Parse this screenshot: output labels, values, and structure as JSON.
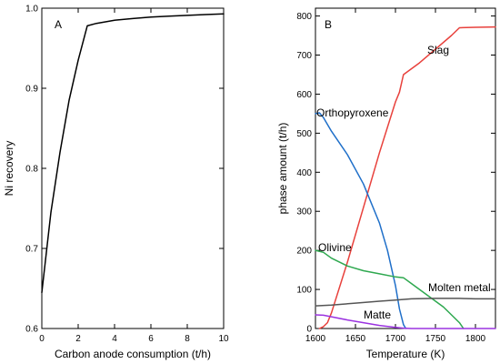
{
  "chart_data": [
    {
      "panel": "A",
      "type": "line",
      "xlabel": "Carbon anode consumption (t/h)",
      "ylabel": "Ni recovery",
      "xlim": [
        0,
        10
      ],
      "ylim": [
        0.6,
        1.0
      ],
      "xticks": [
        0,
        2,
        4,
        6,
        8,
        10
      ],
      "yticks": [
        0.6,
        0.7,
        0.8,
        0.9,
        1.0
      ],
      "ytick_labels": [
        "0.6",
        "0.7",
        "0.8",
        "0.9",
        "1.0"
      ],
      "grid": false,
      "series": [
        {
          "color": "#000000",
          "x": [
            0,
            0.5,
            1.0,
            1.5,
            2.0,
            2.5,
            3,
            4,
            5,
            6,
            7,
            8,
            9,
            10
          ],
          "y": [
            0.645,
            0.745,
            0.82,
            0.885,
            0.935,
            0.978,
            0.981,
            0.985,
            0.987,
            0.989,
            0.99,
            0.991,
            0.992,
            0.993
          ]
        }
      ]
    },
    {
      "panel": "B",
      "type": "line",
      "xlabel": "Temperature (K)",
      "ylabel": "phase amount (t/h)",
      "xlim": [
        1600,
        1825
      ],
      "ylim": [
        0,
        820
      ],
      "xticks": [
        1600,
        1650,
        1700,
        1750,
        1800
      ],
      "yticks": [
        0,
        100,
        200,
        300,
        400,
        500,
        600,
        700,
        800
      ],
      "grid": false,
      "series": [
        {
          "name": "Slag",
          "color": "#e8413c",
          "x": [
            1605,
            1610,
            1615,
            1620,
            1640,
            1660,
            1680,
            1700,
            1705,
            1710,
            1730,
            1750,
            1770,
            1780,
            1800,
            1825
          ],
          "y": [
            0,
            5,
            15,
            40,
            170,
            310,
            450,
            580,
            605,
            650,
            680,
            715,
            750,
            770,
            771,
            772
          ]
        },
        {
          "name": "Orthopyroxene",
          "color": "#1f6fc9",
          "x": [
            1600,
            1605,
            1610,
            1620,
            1640,
            1660,
            1680,
            1690,
            1700,
            1705,
            1710,
            1713
          ],
          "y": [
            550,
            552,
            540,
            505,
            445,
            370,
            270,
            200,
            110,
            50,
            10,
            0
          ]
        },
        {
          "name": "Olivine",
          "color": "#2ea84f",
          "x": [
            1600,
            1610,
            1620,
            1640,
            1660,
            1680,
            1700,
            1710,
            1720,
            1740,
            1760,
            1780,
            1785
          ],
          "y": [
            200,
            195,
            180,
            160,
            148,
            140,
            132,
            130,
            115,
            85,
            55,
            15,
            0
          ]
        },
        {
          "name": "Molten metal",
          "color": "#555555",
          "x": [
            1600,
            1620,
            1650,
            1680,
            1700,
            1720,
            1750,
            1780,
            1800,
            1825
          ],
          "y": [
            58,
            60,
            65,
            70,
            73,
            76,
            77,
            77,
            76,
            76
          ]
        },
        {
          "name": "Matte",
          "color": "#9b33e0",
          "x": [
            1600,
            1610,
            1620,
            1640,
            1660,
            1680,
            1700,
            1710,
            1720,
            1825
          ],
          "y": [
            35,
            34,
            30,
            22,
            15,
            8,
            3,
            1,
            0,
            0
          ]
        }
      ]
    }
  ]
}
